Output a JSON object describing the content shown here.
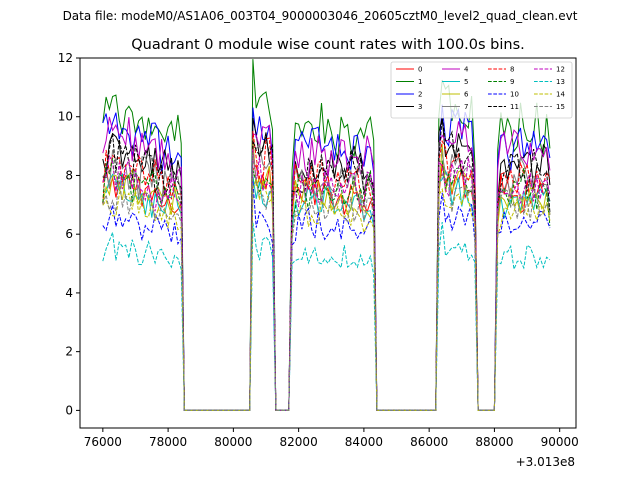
{
  "suptitle": "Data file: modeM0/AS1A06_003T04_9000003046_20605cztM0_level2_quad_clean.evt",
  "chart_data": {
    "type": "line",
    "title": "Quadrant 0 module wise count rates with 100.0s bins.",
    "xlabel": "",
    "ylabel": "",
    "x_offset_label": "+3.013e8",
    "xlim": [
      75300,
      90500
    ],
    "ylim": [
      -0.6,
      12.0
    ],
    "xticks": [
      76000,
      78000,
      80000,
      82000,
      84000,
      86000,
      88000,
      90000
    ],
    "xtick_labels": [
      "76000",
      "78000",
      "80000",
      "82000",
      "84000",
      "86000",
      "88000",
      "90000"
    ],
    "yticks": [
      0,
      2,
      4,
      6,
      8,
      10,
      12
    ],
    "ytick_labels": [
      "0",
      "2",
      "4",
      "6",
      "8",
      "10",
      "12"
    ],
    "grid": false,
    "legend_position": "top-right",
    "segments": [
      {
        "start": 76000,
        "end": 78400,
        "level": 1.0
      },
      {
        "start": 80550,
        "end": 81250,
        "level": 1.05
      },
      {
        "start": 81800,
        "end": 84300,
        "level": 0.98
      },
      {
        "start": 86300,
        "end": 87450,
        "level": 1.04
      },
      {
        "start": 88100,
        "end": 89700,
        "level": 0.99
      }
    ],
    "series": [
      {
        "name": "0",
        "color": "#ff0000",
        "dash": "solid",
        "mean": 7.5
      },
      {
        "name": "1",
        "color": "#008000",
        "dash": "solid",
        "mean": 9.7
      },
      {
        "name": "2",
        "color": "#0000ff",
        "dash": "solid",
        "mean": 9.2
      },
      {
        "name": "3",
        "color": "#000000",
        "dash": "solid",
        "mean": 8.5
      },
      {
        "name": "4",
        "color": "#bf00bf",
        "dash": "solid",
        "mean": 8.9
      },
      {
        "name": "5",
        "color": "#00bfbf",
        "dash": "solid",
        "mean": 7.2
      },
      {
        "name": "6",
        "color": "#bfbf00",
        "dash": "solid",
        "mean": 7.4
      },
      {
        "name": "7",
        "color": "#808080",
        "dash": "solid",
        "mean": 7.9
      },
      {
        "name": "8",
        "color": "#ff0000",
        "dash": "dashed",
        "mean": 8.0
      },
      {
        "name": "9",
        "color": "#008000",
        "dash": "dashed",
        "mean": 7.6
      },
      {
        "name": "10",
        "color": "#0000ff",
        "dash": "dashed",
        "mean": 6.4
      },
      {
        "name": "11",
        "color": "#000000",
        "dash": "dashed",
        "mean": 8.3
      },
      {
        "name": "12",
        "color": "#bf00bf",
        "dash": "dashed",
        "mean": 7.7
      },
      {
        "name": "13",
        "color": "#00bfbf",
        "dash": "dashed",
        "mean": 5.3
      },
      {
        "name": "14",
        "color": "#bfbf00",
        "dash": "dashed",
        "mean": 6.9
      },
      {
        "name": "15",
        "color": "#808080",
        "dash": "dashed",
        "mean": 7.1
      }
    ]
  }
}
